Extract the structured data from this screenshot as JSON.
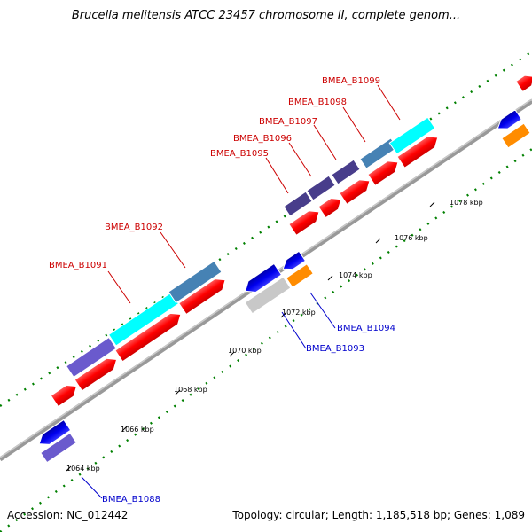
{
  "title": "Brucella melitensis ATCC 23457 chromosome II, complete genom...",
  "footer": {
    "accession": "Accession: NC_012442",
    "summary": "Topology: circular; Length: 1,185,518 bp; Genes: 1,089"
  },
  "axis": {
    "unit": "kbp",
    "ticks": [
      {
        "kbp": 1064,
        "label": "1064 kbp"
      },
      {
        "kbp": 1066,
        "label": "1066 kbp"
      },
      {
        "kbp": 1068,
        "label": "1068 kbp"
      },
      {
        "kbp": 1070,
        "label": "1070 kbp"
      },
      {
        "kbp": 1072,
        "label": "1072 kbp"
      },
      {
        "kbp": 1074,
        "label": "1074 kbp"
      },
      {
        "kbp": 1076,
        "label": "1076 kbp"
      },
      {
        "kbp": 1078,
        "label": "1078 kbp"
      }
    ]
  },
  "colors": {
    "red": "#ff0000",
    "blue": "#0000ee",
    "orange": "#ff8c00",
    "cyan": "#00ffff",
    "steelblue": "#4682b4",
    "slateblue": "#6a5acd",
    "darkslateblue": "#483d8b",
    "gray": "#c0c0c0",
    "backbone": "#999999",
    "dots": "#008000",
    "label_forward": "#cc0000",
    "label_reverse": "#0000cc"
  },
  "genes": [
    {
      "id": "BMEA_B1088",
      "strand": "reverse",
      "label": "BMEA_B1088"
    },
    {
      "id": "BMEA_B1091",
      "strand": "forward",
      "label": "BMEA_B1091"
    },
    {
      "id": "BMEA_B1092",
      "strand": "forward",
      "label": "BMEA_B1092"
    },
    {
      "id": "BMEA_B1093",
      "strand": "reverse",
      "label": "BMEA_B1093"
    },
    {
      "id": "BMEA_B1094",
      "strand": "reverse",
      "label": "BMEA_B1094"
    },
    {
      "id": "BMEA_B1095",
      "strand": "forward",
      "label": "BMEA_B1095"
    },
    {
      "id": "BMEA_B1096",
      "strand": "forward",
      "label": "BMEA_B1096"
    },
    {
      "id": "BMEA_B1097",
      "strand": "forward",
      "label": "BMEA_B1097"
    },
    {
      "id": "BMEA_B1098",
      "strand": "forward",
      "label": "BMEA_B1098"
    },
    {
      "id": "BMEA_B1099",
      "strand": "forward",
      "label": "BMEA_B1099"
    }
  ]
}
